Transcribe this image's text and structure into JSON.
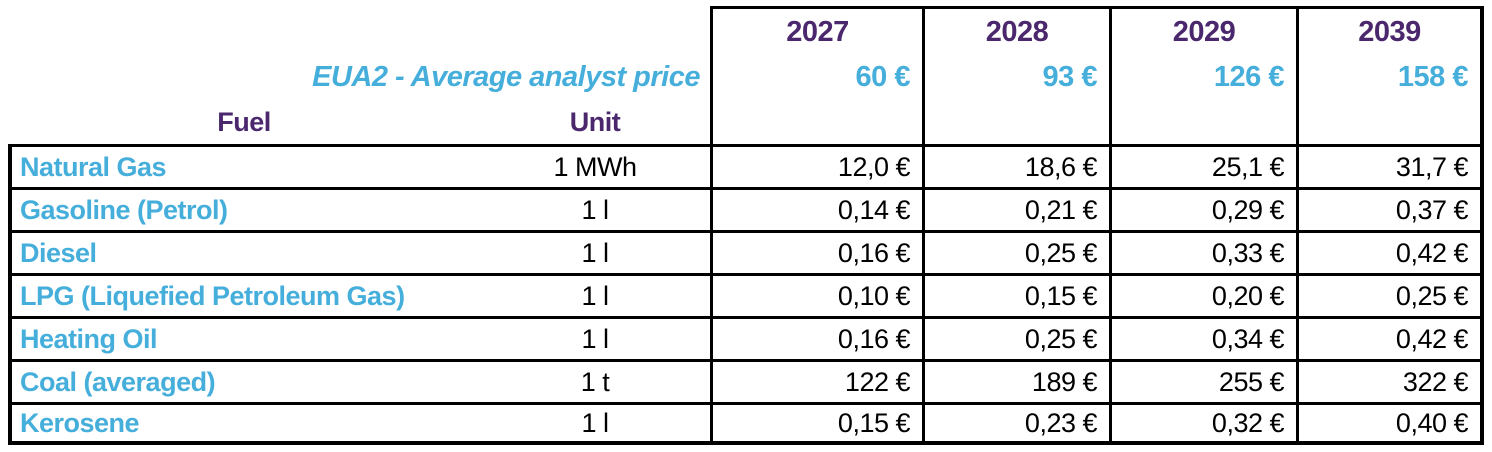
{
  "colors": {
    "accent_blue": "#45AEDB",
    "accent_purple": "#4B286D",
    "border_black": "#000000",
    "background": "#FFFFFF"
  },
  "header": {
    "years": [
      "2027",
      "2028",
      "2029",
      "2039"
    ],
    "eua_label": "EUA2 - Average analyst price",
    "eua_prices": [
      "60 €",
      "93 €",
      "126 €",
      "158 €"
    ],
    "fuel_label": "Fuel",
    "unit_label": "Unit"
  },
  "rows": [
    {
      "fuel": "Natural Gas",
      "unit": "1 MWh",
      "values": [
        "12,0 €",
        "18,6 €",
        "25,1 €",
        "31,7 €"
      ]
    },
    {
      "fuel": "Gasoline (Petrol)",
      "unit": "1 l",
      "values": [
        "0,14 €",
        "0,21 €",
        "0,29 €",
        "0,37 €"
      ]
    },
    {
      "fuel": "Diesel",
      "unit": "1 l",
      "values": [
        "0,16 €",
        "0,25 €",
        "0,33 €",
        "0,42 €"
      ]
    },
    {
      "fuel": "LPG (Liquefied Petroleum Gas)",
      "unit": "1 l",
      "values": [
        "0,10 €",
        "0,15 €",
        "0,20 €",
        "0,25 €"
      ]
    },
    {
      "fuel": "Heating Oil",
      "unit": "1 l",
      "values": [
        "0,16 €",
        "0,25 €",
        "0,34 €",
        "0,42 €"
      ]
    },
    {
      "fuel": "Coal (averaged)",
      "unit": "1 t",
      "values": [
        "122 €",
        "189 €",
        "255 €",
        "322 €"
      ]
    },
    {
      "fuel": "Kerosene",
      "unit": "1 l",
      "values": [
        "0,15 €",
        "0,23 €",
        "0,32 €",
        "0,40 €"
      ]
    }
  ],
  "chart_data": {
    "type": "table",
    "title": "EUA2 - Average analyst price",
    "columns": [
      "Fuel",
      "Unit",
      "2027",
      "2028",
      "2029",
      "2039"
    ],
    "eua2_average_analyst_price_eur": {
      "2027": 60,
      "2028": 93,
      "2029": 126,
      "2039": 158
    },
    "rows": [
      {
        "fuel": "Natural Gas",
        "unit": "1 MWh",
        "prices_eur": [
          12.0,
          18.6,
          25.1,
          31.7
        ]
      },
      {
        "fuel": "Gasoline (Petrol)",
        "unit": "1 l",
        "prices_eur": [
          0.14,
          0.21,
          0.29,
          0.37
        ]
      },
      {
        "fuel": "Diesel",
        "unit": "1 l",
        "prices_eur": [
          0.16,
          0.25,
          0.33,
          0.42
        ]
      },
      {
        "fuel": "LPG (Liquefied Petroleum Gas)",
        "unit": "1 l",
        "prices_eur": [
          0.1,
          0.15,
          0.2,
          0.25
        ]
      },
      {
        "fuel": "Heating Oil",
        "unit": "1 l",
        "prices_eur": [
          0.16,
          0.25,
          0.34,
          0.42
        ]
      },
      {
        "fuel": "Coal (averaged)",
        "unit": "1 t",
        "prices_eur": [
          122,
          189,
          255,
          322
        ]
      },
      {
        "fuel": "Kerosene",
        "unit": "1 l",
        "prices_eur": [
          0.15,
          0.23,
          0.32,
          0.4
        ]
      }
    ]
  }
}
